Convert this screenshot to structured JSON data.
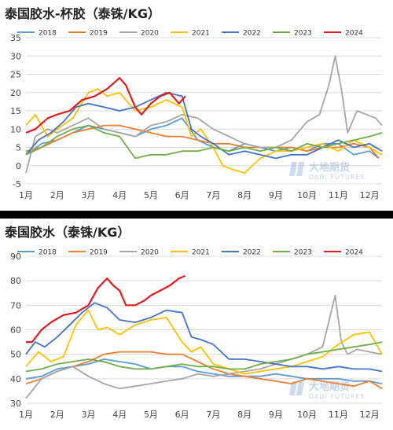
{
  "chart_data": [
    {
      "type": "line",
      "title": "泰国胶水-杯胶（泰铢/KG）",
      "categories": [
        "1月",
        "2月",
        "3月",
        "4月",
        "5月",
        "6月",
        "7月",
        "8月",
        "9月",
        "10月",
        "11月",
        "12月"
      ],
      "ylim": [
        -5,
        35
      ],
      "yticks": [
        -5,
        0,
        5,
        10,
        15,
        20,
        25,
        30,
        35
      ],
      "grid": true,
      "legend": "top",
      "series": [
        {
          "name": "2018",
          "color": "#5b9bd5",
          "x": [
            1,
            1.5,
            2,
            2.5,
            3,
            3.5,
            4,
            4.5,
            5,
            5.5,
            6,
            6.5,
            7,
            7.5,
            8,
            8.5,
            9,
            9.5,
            10,
            10.5,
            11,
            11.5,
            12,
            12.3
          ],
          "values": [
            3,
            6,
            7,
            9,
            11,
            10,
            9,
            8,
            10,
            11,
            13,
            7,
            5,
            4,
            6,
            5,
            4,
            5,
            4,
            6,
            6,
            3,
            4,
            2
          ]
        },
        {
          "name": "2019",
          "color": "#ed7d31",
          "x": [
            1,
            1.5,
            2,
            2.5,
            3,
            3.5,
            4,
            4.5,
            5,
            5.5,
            6,
            6.5,
            7,
            7.5,
            8,
            8.5,
            9,
            9.5,
            10,
            10.5,
            11,
            11.5,
            12,
            12.3
          ],
          "values": [
            4,
            5,
            7,
            9,
            10,
            11,
            11,
            10,
            9,
            8,
            8,
            7,
            6,
            6,
            5,
            5,
            5,
            5,
            4,
            5,
            5,
            6,
            5,
            2
          ]
        },
        {
          "name": "2020",
          "color": "#a5a5a5",
          "x": [
            1,
            1.3,
            1.7,
            2,
            2.5,
            3,
            3.5,
            4,
            4.5,
            5,
            5.5,
            6,
            6.5,
            7,
            7.5,
            8,
            8.5,
            9,
            9.5,
            10,
            10.4,
            10.7,
            10.9,
            11.1,
            11.3,
            11.6,
            11.9,
            12.2,
            12.4
          ],
          "values": [
            -2,
            8,
            10,
            9,
            11,
            13,
            10,
            9,
            8,
            11,
            12,
            14,
            13,
            10,
            8,
            6,
            5,
            5,
            7,
            12,
            14,
            22,
            30,
            21,
            9,
            15,
            14,
            13,
            11
          ]
        },
        {
          "name": "2021",
          "color": "#ffc000",
          "x": [
            1,
            1.3,
            1.7,
            2,
            2.5,
            3,
            3.3,
            3.6,
            4,
            4.5,
            5,
            5.5,
            6,
            6.3,
            6.6,
            7,
            7.3,
            7.6,
            8,
            8.5,
            9,
            9.5,
            10,
            10.5,
            11,
            11.5,
            12,
            12.4
          ],
          "values": [
            11,
            14,
            8,
            10,
            13,
            20,
            21,
            19,
            20,
            15,
            16,
            18,
            16,
            8,
            10,
            5,
            0,
            -1,
            -2,
            2,
            4,
            4,
            5,
            6,
            4,
            7,
            5,
            3
          ]
        },
        {
          "name": "2022",
          "color": "#4472c4",
          "x": [
            1,
            1.4,
            1.8,
            2.2,
            2.6,
            3,
            3.5,
            4,
            4.5,
            5,
            5.5,
            6,
            6.3,
            6.6,
            7,
            7.5,
            8,
            8.5,
            9,
            9.5,
            10,
            10.5,
            11,
            11.5,
            12,
            12.4
          ],
          "values": [
            3,
            7,
            9,
            12,
            16,
            17,
            16,
            15,
            16,
            18,
            20,
            19,
            10,
            8,
            6,
            3,
            4,
            3,
            2,
            3,
            3,
            5,
            7,
            5,
            6,
            4
          ]
        },
        {
          "name": "2023",
          "color": "#70ad47",
          "x": [
            1,
            1.5,
            2,
            2.5,
            3,
            3.5,
            4,
            4.5,
            5,
            5.5,
            6,
            6.5,
            7,
            7.5,
            8,
            8.5,
            9,
            9.5,
            10,
            10.5,
            11,
            11.5,
            12,
            12.4
          ],
          "values": [
            3,
            5,
            8,
            10,
            11,
            9,
            8,
            2,
            3,
            3,
            4,
            4,
            5,
            4,
            5,
            4,
            5,
            4,
            6,
            5,
            6,
            7,
            8,
            9
          ]
        },
        {
          "name": "2024",
          "color": "#e31a1c",
          "x": [
            1,
            1.3,
            1.7,
            2,
            2.4,
            2.8,
            3.2,
            3.6,
            4,
            4.2,
            4.5,
            4.7,
            5,
            5.3,
            5.6,
            5.9,
            6.1
          ],
          "values": [
            9,
            10,
            13,
            14,
            15,
            18,
            19,
            21,
            24,
            22,
            16,
            14,
            17,
            19,
            20,
            17,
            19
          ]
        }
      ],
      "watermark": {
        "brand": "大地期货",
        "sub": "DADI FUTURES"
      }
    },
    {
      "type": "line",
      "title": "泰国胶水（泰铢/KG）",
      "categories": [
        "1月",
        "2月",
        "3月",
        "4月",
        "5月",
        "6月",
        "7月",
        "8月",
        "9月",
        "10月",
        "11月",
        "12月"
      ],
      "ylim": [
        30,
        90
      ],
      "yticks": [
        30,
        40,
        50,
        60,
        70,
        80,
        90
      ],
      "grid": true,
      "legend": "top",
      "series": [
        {
          "name": "2018",
          "color": "#5b9bd5",
          "x": [
            1,
            1.5,
            2,
            2.5,
            3,
            3.5,
            4,
            4.5,
            5,
            5.5,
            6,
            6.5,
            7,
            7.5,
            8,
            8.5,
            9,
            9.5,
            10,
            10.5,
            11,
            11.5,
            12,
            12.4
          ],
          "values": [
            40,
            41,
            44,
            45,
            46,
            48,
            47,
            46,
            44,
            45,
            45,
            43,
            42,
            41,
            41,
            41,
            42,
            41,
            40,
            40,
            40,
            39,
            39,
            38
          ]
        },
        {
          "name": "2019",
          "color": "#ed7d31",
          "x": [
            1,
            1.5,
            2,
            2.5,
            3,
            3.5,
            4,
            4.5,
            5,
            5.5,
            6,
            6.5,
            7,
            7.5,
            8,
            8.5,
            9,
            9.5,
            10,
            10.5,
            11,
            11.5,
            12,
            12.4
          ],
          "values": [
            38,
            40,
            43,
            45,
            47,
            50,
            51,
            51,
            51,
            50,
            50,
            47,
            44,
            42,
            41,
            40,
            39,
            38,
            40,
            39,
            38,
            37,
            39,
            36
          ]
        },
        {
          "name": "2020",
          "color": "#a5a5a5",
          "x": [
            1,
            1.5,
            2,
            2.5,
            3,
            3.5,
            4,
            4.5,
            5,
            5.5,
            6,
            6.5,
            7,
            7.5,
            8,
            8.5,
            9,
            9.5,
            10,
            10.5,
            10.9,
            11.1,
            11.3,
            11.6,
            12,
            12.4
          ],
          "values": [
            32,
            40,
            43,
            45,
            41,
            38,
            36,
            37,
            38,
            39,
            40,
            42,
            41,
            42,
            43,
            44,
            46,
            48,
            50,
            53,
            74,
            55,
            50,
            52,
            51,
            50
          ]
        },
        {
          "name": "2021",
          "color": "#ffc000",
          "x": [
            1,
            1.4,
            1.8,
            2.2,
            2.6,
            3,
            3.3,
            3.6,
            4,
            4.5,
            5,
            5.5,
            6,
            6.3,
            6.6,
            7,
            7.5,
            8,
            8.5,
            9,
            9.5,
            10,
            10.5,
            11,
            11.5,
            12,
            12.4
          ],
          "values": [
            45,
            51,
            47,
            49,
            62,
            68,
            60,
            61,
            58,
            62,
            64,
            65,
            55,
            51,
            53,
            46,
            44,
            42,
            43,
            44,
            45,
            47,
            49,
            54,
            58,
            59,
            50
          ]
        },
        {
          "name": "2022",
          "color": "#4472c4",
          "x": [
            1,
            1.3,
            1.6,
            2,
            2.4,
            2.8,
            3.2,
            3.6,
            4,
            4.5,
            5,
            5.5,
            6,
            6.3,
            6.6,
            7,
            7.5,
            8,
            8.5,
            9,
            9.5,
            10,
            10.5,
            11,
            11.5,
            12,
            12.4
          ],
          "values": [
            50,
            55,
            53,
            57,
            62,
            67,
            71,
            69,
            64,
            63,
            65,
            68,
            67,
            57,
            56,
            54,
            48,
            48,
            47,
            46,
            45,
            45,
            44,
            45,
            44,
            44,
            43
          ]
        },
        {
          "name": "2023",
          "color": "#70ad47",
          "x": [
            1,
            1.5,
            2,
            2.5,
            3,
            3.5,
            4,
            4.5,
            5,
            5.5,
            6,
            6.5,
            7,
            7.5,
            8,
            8.5,
            9,
            9.5,
            10,
            10.5,
            11,
            11.5,
            12,
            12.4
          ],
          "values": [
            43,
            44,
            46,
            47,
            48,
            47,
            45,
            44,
            44,
            45,
            46,
            45,
            45,
            44,
            44,
            46,
            47,
            48,
            50,
            51,
            52,
            53,
            54,
            55
          ]
        },
        {
          "name": "2024",
          "color": "#e31a1c",
          "x": [
            1,
            1.2,
            1.5,
            1.8,
            2.2,
            2.6,
            3,
            3.3,
            3.6,
            3.8,
            4,
            4.2,
            4.5,
            4.8,
            5,
            5.3,
            5.6,
            5.9,
            6.1
          ],
          "values": [
            55,
            55,
            60,
            63,
            66,
            67,
            70,
            77,
            81,
            78,
            76,
            70,
            70,
            72,
            74,
            76,
            78,
            81,
            82
          ]
        }
      ],
      "watermark": {
        "brand": "大地期货",
        "sub": "DADI FUTURES"
      }
    }
  ]
}
